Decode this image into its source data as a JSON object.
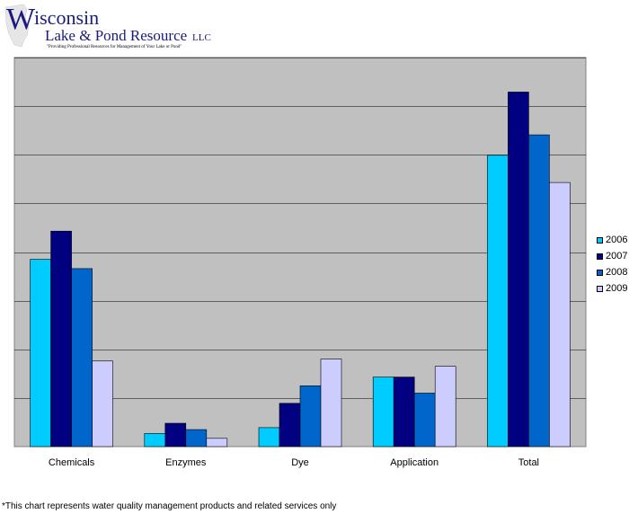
{
  "logo": {
    "line1_initial": "W",
    "line1_rest": "isconsin",
    "line2": "Lake & Pond Resource",
    "line2_suffix": "LLC",
    "tagline": "\"Providing Professional Resources for Management of Your Lake or Pond\""
  },
  "footnote": "*This chart represents water quality management products and related services only",
  "colors": {
    "plot_background": "#c0c0c0",
    "gridline": "#000000",
    "series": [
      "#00ccff",
      "#000080",
      "#0066cc",
      "#ccccff"
    ]
  },
  "chart_data": {
    "type": "bar",
    "categories": [
      "Chemicals",
      "Enzymes",
      "Dye",
      "Application",
      "Total"
    ],
    "series": [
      {
        "name": "2006",
        "values": [
          3.85,
          0.27,
          0.39,
          1.43,
          5.99
        ]
      },
      {
        "name": "2007",
        "values": [
          4.43,
          0.48,
          0.89,
          1.43,
          7.29
        ]
      },
      {
        "name": "2008",
        "values": [
          3.66,
          0.35,
          1.25,
          1.1,
          6.41
        ]
      },
      {
        "name": "2009",
        "values": [
          1.76,
          0.17,
          1.8,
          1.65,
          5.43
        ]
      }
    ],
    "ylim": [
      0,
      8
    ],
    "y_gridlines": [
      1,
      2,
      3,
      4,
      5,
      6,
      7,
      8
    ],
    "ytick_labels_shown": false,
    "grid": true,
    "legend_placement": "right"
  }
}
